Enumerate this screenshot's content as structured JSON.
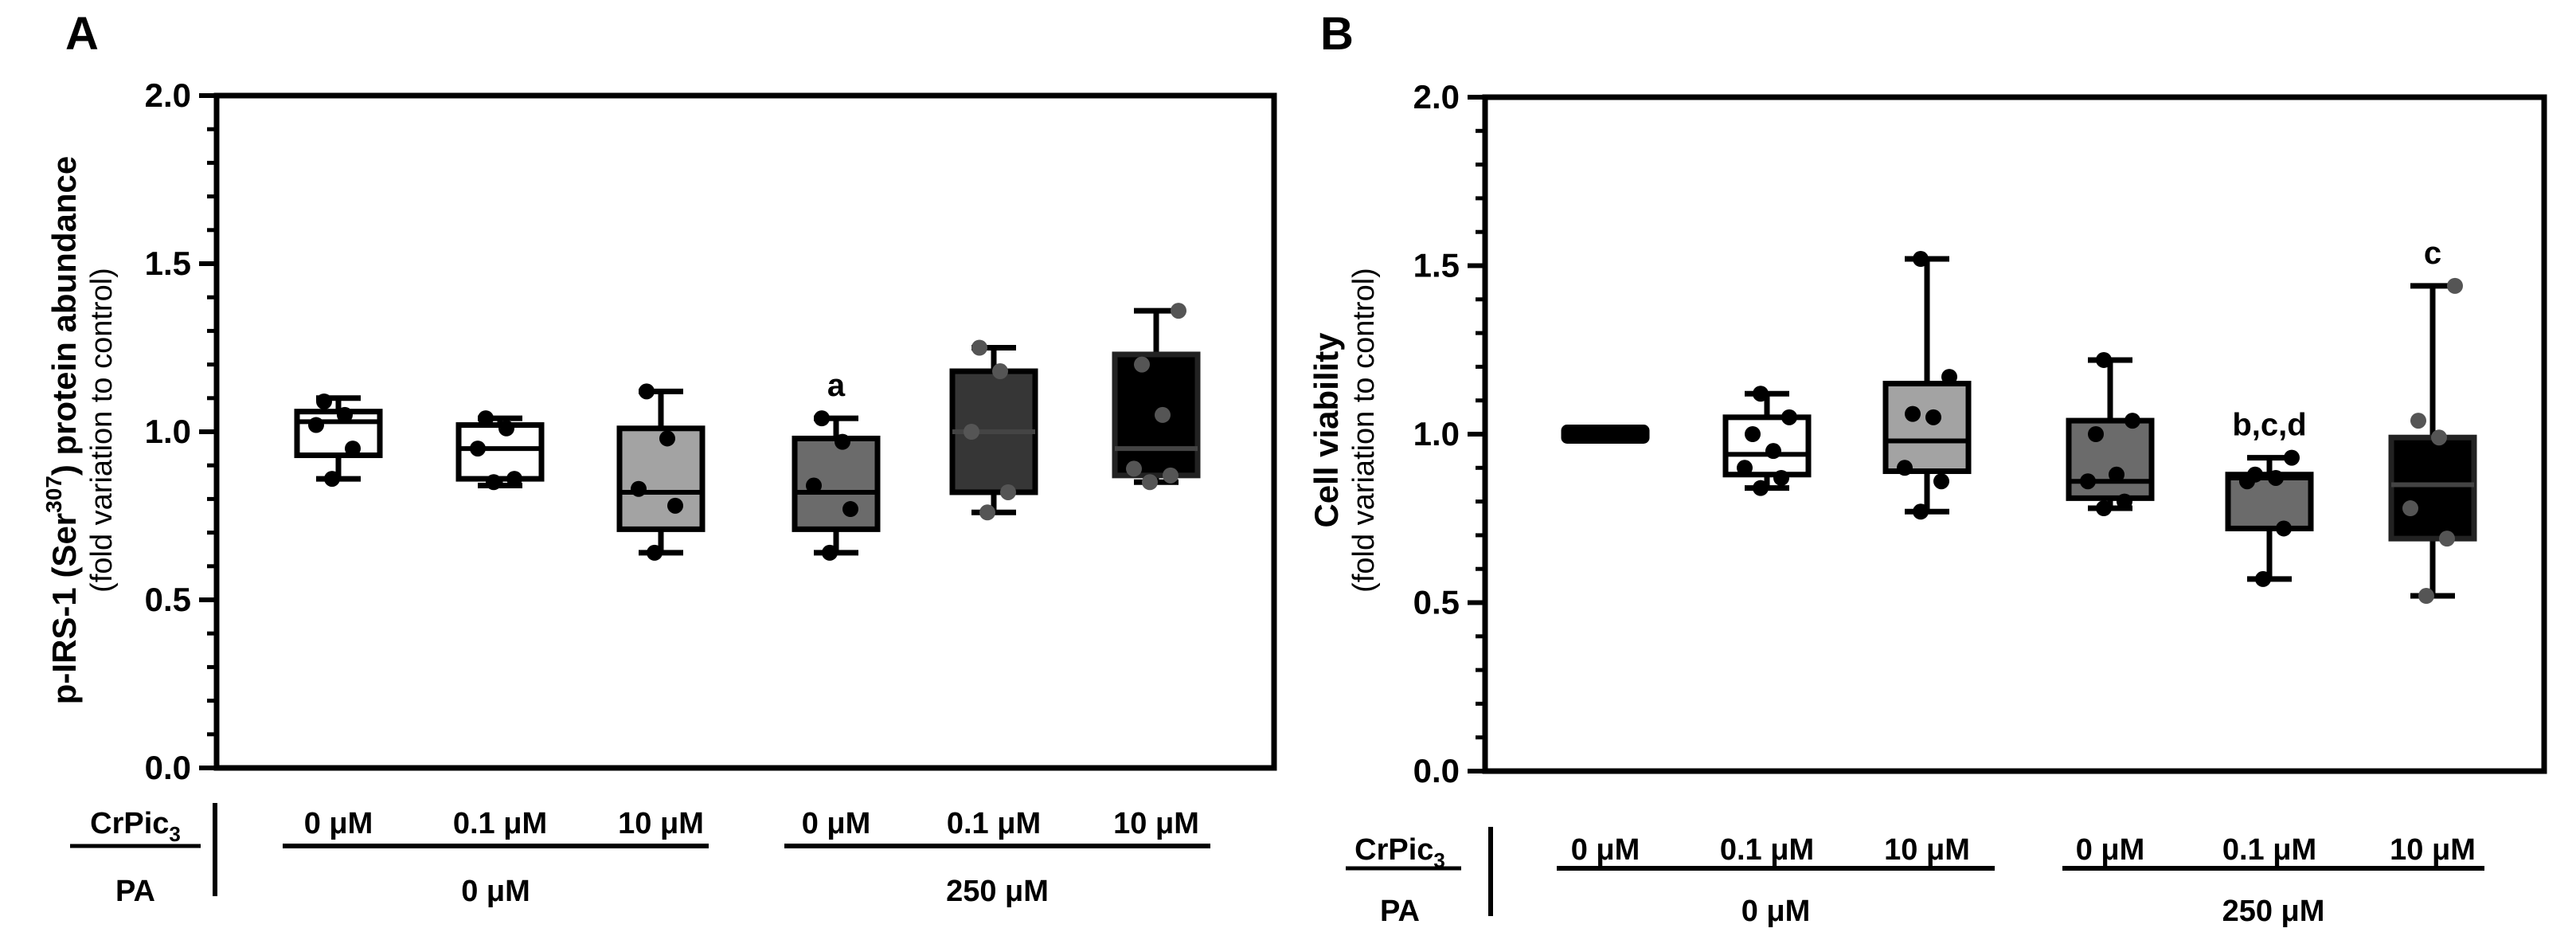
{
  "chart_data": [
    {
      "panel_label": "A",
      "type": "box",
      "ylabel_main": "p-IRS-1 (Ser",
      "ylabel_sup": "307",
      "ylabel_rest": ") protein abundance",
      "ylabel_sub": "(fold variation to control)",
      "ylim": [
        0,
        2
      ],
      "yticks": [
        "0.0",
        "0.5",
        "1.0",
        "1.5",
        "2.0"
      ],
      "row1_label": "CrPic",
      "row1_sub": "3",
      "row2_label": "PA",
      "doses": [
        "0 μM",
        "0.1 μM",
        "10 μM",
        "0 μM",
        "0.1 μM",
        "10 μM"
      ],
      "pa_groups": [
        "0 μM",
        "250 μM"
      ],
      "boxes": [
        {
          "min": 0.86,
          "q1": 0.93,
          "median": 1.03,
          "q3": 1.06,
          "max": 1.1,
          "fill": "#ffffff",
          "points": [
            0.86,
            0.95,
            1.02,
            1.05,
            1.09
          ],
          "annotation": ""
        },
        {
          "min": 0.84,
          "q1": 0.86,
          "median": 0.95,
          "q3": 1.02,
          "max": 1.04,
          "fill": "#ffffff",
          "points": [
            0.85,
            0.86,
            0.95,
            1.01,
            1.04
          ],
          "annotation": ""
        },
        {
          "min": 0.64,
          "q1": 0.71,
          "median": 0.82,
          "q3": 1.01,
          "max": 1.12,
          "fill": "#a3a3a3",
          "points": [
            0.64,
            0.78,
            0.83,
            0.98,
            1.12
          ],
          "annotation": ""
        },
        {
          "min": 0.64,
          "q1": 0.71,
          "median": 0.82,
          "q3": 0.98,
          "max": 1.04,
          "fill": "#6b6b6b",
          "points": [
            0.64,
            0.77,
            0.84,
            0.97,
            1.04
          ],
          "annotation": "a"
        },
        {
          "min": 0.76,
          "q1": 0.82,
          "median": 1.0,
          "q3": 1.18,
          "max": 1.25,
          "fill": "#363636",
          "points": [
            0.76,
            0.82,
            1.0,
            1.18,
            1.25
          ],
          "annotation": ""
        },
        {
          "min": 0.85,
          "q1": 0.87,
          "median": 0.95,
          "q3": 1.23,
          "max": 1.36,
          "fill": "#000000",
          "points": [
            0.85,
            0.87,
            0.89,
            1.05,
            1.2,
            1.36
          ],
          "annotation": ""
        }
      ]
    },
    {
      "panel_label": "B",
      "type": "box",
      "ylabel_main": "Cell viability",
      "ylabel_sup": "",
      "ylabel_rest": "",
      "ylabel_sub": "(fold variation to control)",
      "ylim": [
        0,
        2
      ],
      "yticks": [
        "0.0",
        "0.5",
        "1.0",
        "1.5",
        "2.0"
      ],
      "row1_label": "CrPic",
      "row1_sub": "3",
      "row2_label": "PA",
      "doses": [
        "0 μM",
        "0.1 μM",
        "10 μM",
        "0 μM",
        "0.1 μM",
        "10 μM"
      ],
      "pa_groups": [
        "0 μM",
        "250 μM"
      ],
      "boxes": [
        {
          "min": 0.98,
          "q1": 0.98,
          "median": 1.0,
          "q3": 1.02,
          "max": 1.02,
          "fill": "#000000",
          "points": [],
          "annotation": ""
        },
        {
          "min": 0.84,
          "q1": 0.88,
          "median": 0.94,
          "q3": 1.05,
          "max": 1.12,
          "fill": "#ffffff",
          "points": [
            0.84,
            0.87,
            0.9,
            0.95,
            1.0,
            1.05,
            1.12
          ],
          "annotation": ""
        },
        {
          "min": 0.77,
          "q1": 0.89,
          "median": 0.98,
          "q3": 1.15,
          "max": 1.52,
          "fill": "#a3a3a3",
          "points": [
            0.77,
            0.86,
            0.9,
            1.05,
            1.06,
            1.17,
            1.52
          ],
          "annotation": ""
        },
        {
          "min": 0.78,
          "q1": 0.81,
          "median": 0.86,
          "q3": 1.04,
          "max": 1.22,
          "fill": "#6b6b6b",
          "points": [
            0.78,
            0.8,
            0.86,
            0.88,
            1.0,
            1.04,
            1.22
          ],
          "annotation": ""
        },
        {
          "min": 0.57,
          "q1": 0.72,
          "median": 0.87,
          "q3": 0.88,
          "max": 0.93,
          "fill": "#6b6b6b",
          "points": [
            0.57,
            0.72,
            0.86,
            0.87,
            0.88,
            0.93
          ],
          "annotation": "b,c,d"
        },
        {
          "min": 0.52,
          "q1": 0.69,
          "median": 0.85,
          "q3": 0.99,
          "max": 1.44,
          "fill": "#000000",
          "points": [
            0.52,
            0.69,
            0.78,
            0.99,
            1.04,
            1.44
          ],
          "annotation": "c"
        }
      ]
    }
  ]
}
